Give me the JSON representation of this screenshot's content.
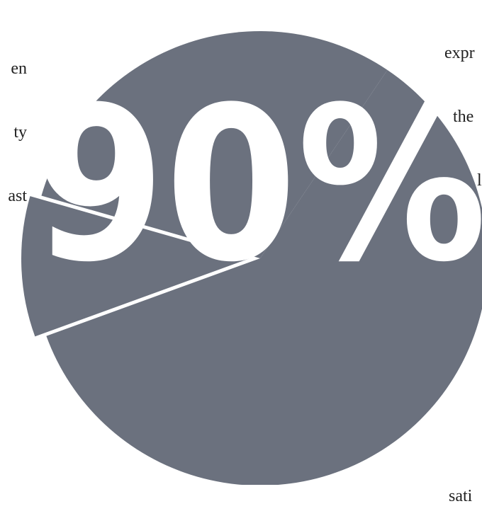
{
  "colors": {
    "slice": "#6b717e",
    "background": "#ffffff",
    "label": "#ffffff",
    "text": "#222222"
  },
  "text_fragments": {
    "left": [
      "en",
      "ty",
      "ast"
    ],
    "right_top": [
      "expr",
      "the",
      "l"
    ],
    "right_bottom": [
      "sati"
    ]
  },
  "chart_data": {
    "type": "pie",
    "start_angle_deg": -56,
    "slices": [
      {
        "value": 60,
        "exploded": false
      },
      {
        "value": 10,
        "exploded": true
      },
      {
        "value": 30,
        "exploded": false
      }
    ],
    "overlay_label": "90%"
  }
}
